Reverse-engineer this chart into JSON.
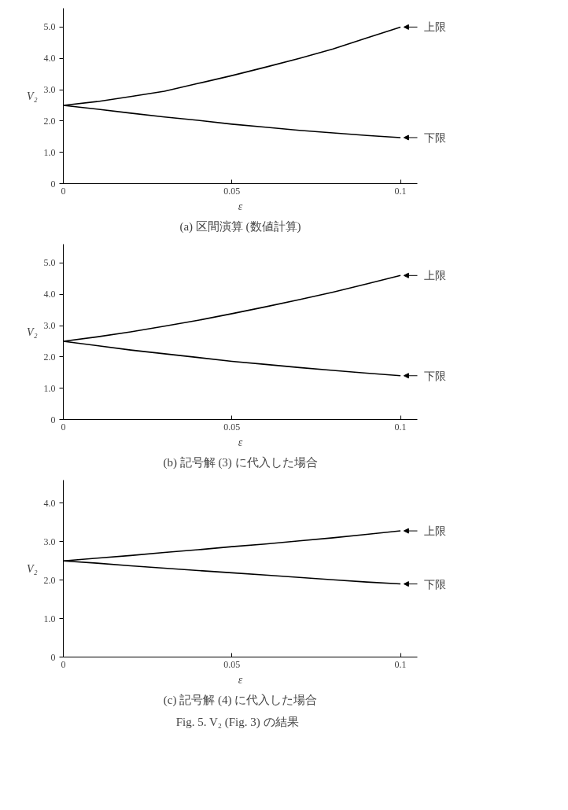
{
  "chart_data": [
    {
      "type": "line",
      "title": "(a) 区間演算 (数値計算)",
      "xlabel": "ε",
      "ylabel": "V₂",
      "x": [
        0,
        0.01,
        0.02,
        0.03,
        0.04,
        0.05,
        0.06,
        0.07,
        0.08,
        0.09,
        0.1
      ],
      "series": [
        {
          "name": "上限",
          "color": "#000000",
          "values": [
            2.5,
            2.62,
            2.78,
            2.95,
            3.2,
            3.45,
            3.72,
            4.0,
            4.3,
            4.65,
            5.0
          ]
        },
        {
          "name": "下限",
          "color": "#000000",
          "values": [
            2.5,
            2.38,
            2.25,
            2.13,
            2.02,
            1.9,
            1.8,
            1.7,
            1.62,
            1.54,
            1.47
          ]
        }
      ],
      "xlim": [
        0,
        0.105
      ],
      "ylim": [
        0,
        5.6
      ],
      "xticks": [
        0,
        0.05,
        0.1
      ],
      "yticks": [
        0,
        {
          "value": 1,
          "label": "1.0"
        },
        {
          "value": 2,
          "label": "2.0"
        },
        {
          "value": 3,
          "label": "3.0"
        },
        {
          "value": 4,
          "label": "4.0"
        },
        {
          "value": 5,
          "label": "5.0"
        }
      ],
      "grid": false,
      "legend": "right",
      "marker": "none",
      "line_style": "solid"
    },
    {
      "type": "line",
      "title": "(b) 記号解 (3) に代入した場合",
      "xlabel": "ε",
      "ylabel": "V₂",
      "x": [
        0,
        0.01,
        0.02,
        0.03,
        0.04,
        0.05,
        0.06,
        0.07,
        0.08,
        0.09,
        0.1
      ],
      "series": [
        {
          "name": "上限",
          "color": "#000000",
          "values": [
            2.5,
            2.64,
            2.8,
            2.98,
            3.17,
            3.38,
            3.6,
            3.83,
            4.07,
            4.33,
            4.6
          ]
        },
        {
          "name": "下限",
          "color": "#000000",
          "values": [
            2.5,
            2.36,
            2.22,
            2.1,
            1.98,
            1.86,
            1.76,
            1.66,
            1.57,
            1.48,
            1.4
          ]
        }
      ],
      "xlim": [
        0,
        0.105
      ],
      "ylim": [
        0,
        5.6
      ],
      "xticks": [
        0,
        0.05,
        0.1
      ],
      "yticks": [
        0,
        {
          "value": 1,
          "label": "1.0"
        },
        {
          "value": 2,
          "label": "2.0"
        },
        {
          "value": 3,
          "label": "3.0"
        },
        {
          "value": 4,
          "label": "4.0"
        },
        {
          "value": 5,
          "label": "5.0"
        }
      ],
      "grid": false,
      "legend": "right",
      "marker": "none",
      "line_style": "solid"
    },
    {
      "type": "line",
      "title": "(c) 記号解 (4) に代入した場合",
      "xlabel": "ε",
      "ylabel": "V₂",
      "annotations": [
        "Fig. 5.   V₂ (Fig. 3) の結果"
      ],
      "x": [
        0,
        0.01,
        0.02,
        0.03,
        0.04,
        0.05,
        0.06,
        0.07,
        0.08,
        0.09,
        0.1
      ],
      "series": [
        {
          "name": "上限",
          "color": "#000000",
          "values": [
            2.5,
            2.57,
            2.64,
            2.72,
            2.79,
            2.87,
            2.94,
            3.02,
            3.1,
            3.19,
            3.28
          ]
        },
        {
          "name": "下限",
          "color": "#000000",
          "values": [
            2.5,
            2.44,
            2.37,
            2.31,
            2.25,
            2.19,
            2.13,
            2.07,
            2.01,
            1.95,
            1.9
          ]
        }
      ],
      "xlim": [
        0,
        0.105
      ],
      "ylim": [
        0,
        4.6
      ],
      "xticks": [
        0,
        0.05,
        0.1
      ],
      "yticks": [
        0,
        {
          "value": 1,
          "label": "1.0"
        },
        {
          "value": 2,
          "label": "2.0"
        },
        {
          "value": 3,
          "label": "3.0"
        },
        {
          "value": 4,
          "label": "4.0"
        }
      ],
      "grid": false,
      "legend": "right",
      "marker": "none",
      "line_style": "solid"
    }
  ]
}
